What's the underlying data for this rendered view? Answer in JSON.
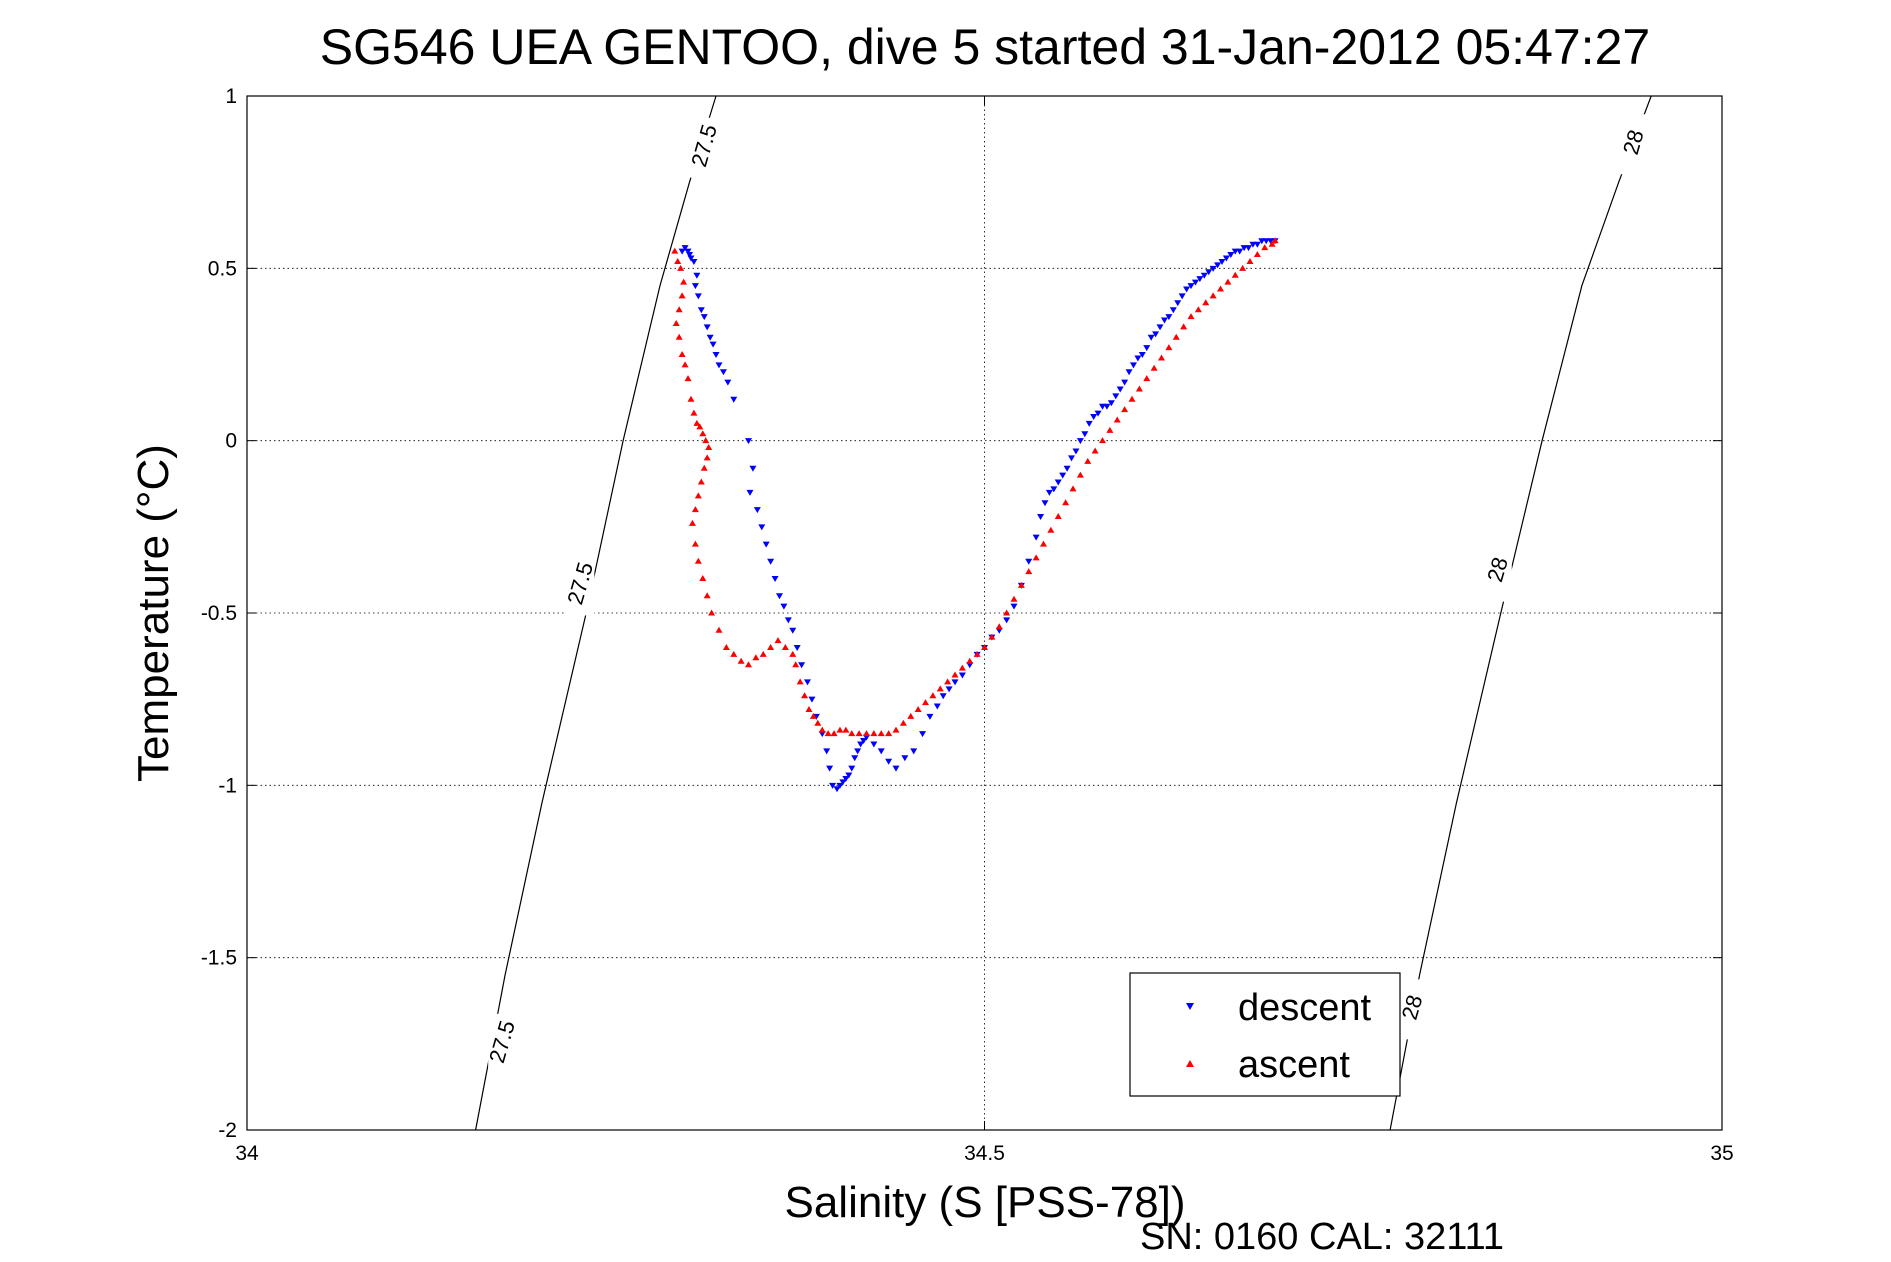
{
  "chart_data": {
    "type": "scatter",
    "title": "SG546 UEA GENTOO, dive 5 started 31-Jan-2012 05:47:27",
    "xlabel": "Salinity (S [PSS-78])",
    "ylabel": "Temperature (°C)",
    "xlim": [
      34,
      35
    ],
    "ylim": [
      -2,
      1
    ],
    "xticks": [
      34,
      34.5,
      35
    ],
    "xtick_labels": [
      "34",
      "34.5",
      "35"
    ],
    "yticks": [
      -2,
      -1.5,
      -1,
      -0.5,
      0,
      0.5,
      1
    ],
    "ytick_labels": [
      "-2",
      "-1.5",
      "-1",
      "-0.5",
      "0",
      "0.5",
      "1"
    ],
    "grid": true,
    "legend_position": "bottom-right",
    "footer": "SN: 0160  CAL: 32111",
    "contours": [
      {
        "level": "27.5",
        "x": [
          34.155,
          34.175,
          34.2,
          34.23,
          34.255,
          34.28,
          34.3,
          34.318
        ],
        "y": [
          -2.0,
          -1.55,
          -1.05,
          -0.5,
          0.0,
          0.45,
          0.75,
          1.0
        ],
        "labels": [
          {
            "x": 34.173,
            "y": -1.75
          },
          {
            "x": 34.226,
            "y": -0.42
          },
          {
            "x": 34.31,
            "y": 0.85
          }
        ]
      },
      {
        "level": "28",
        "x": [
          34.775,
          34.795,
          34.82,
          34.85,
          34.878,
          34.905,
          34.93,
          34.952
        ],
        "y": [
          -2.0,
          -1.55,
          -1.05,
          -0.5,
          0.0,
          0.45,
          0.75,
          1.0
        ],
        "labels": [
          {
            "x": 34.79,
            "y": -1.65
          },
          {
            "x": 34.848,
            "y": -0.38
          },
          {
            "x": 34.94,
            "y": 0.86
          }
        ]
      }
    ],
    "series": [
      {
        "name": "descent",
        "color": "#0000ff",
        "marker": "triangle-down",
        "x": [
          34.295,
          34.297,
          34.299,
          34.3,
          34.301,
          34.303,
          34.305,
          34.304,
          34.306,
          34.308,
          34.31,
          34.312,
          34.314,
          34.316,
          34.318,
          34.32,
          34.323,
          34.326,
          34.33,
          34.34,
          34.343,
          34.341,
          34.346,
          34.349,
          34.352,
          34.355,
          34.358,
          34.361,
          34.364,
          34.367,
          34.37,
          34.373,
          34.376,
          34.38,
          34.383,
          34.386,
          34.39,
          34.393,
          34.395,
          34.397,
          34.4,
          34.402,
          34.404,
          34.406,
          34.408,
          34.41,
          34.412,
          34.414,
          34.416,
          34.418,
          34.42,
          34.425,
          34.43,
          34.435,
          34.44,
          34.446,
          34.452,
          34.458,
          34.463,
          34.468,
          34.472,
          34.476,
          34.48,
          34.485,
          34.49,
          34.495,
          34.5,
          34.505,
          34.51,
          34.515,
          34.52,
          34.525,
          34.53,
          34.535,
          34.538,
          34.541,
          34.544,
          34.547,
          34.55,
          34.553,
          34.556,
          34.559,
          34.562,
          34.565,
          34.568,
          34.571,
          34.574,
          34.577,
          34.58,
          34.583,
          34.586,
          34.589,
          34.592,
          34.595,
          34.598,
          34.601,
          34.604,
          34.607,
          34.61,
          34.613,
          34.616,
          34.619,
          34.622,
          34.625,
          34.628,
          34.631,
          34.634,
          34.637,
          34.64,
          34.643,
          34.646,
          34.649,
          34.652,
          34.655,
          34.658,
          34.661,
          34.664,
          34.667,
          34.67,
          34.673,
          34.676,
          34.679,
          34.682,
          34.685,
          34.688,
          34.691,
          34.694,
          34.697
        ],
        "y": [
          0.55,
          0.56,
          0.55,
          0.54,
          0.53,
          0.52,
          0.48,
          0.45,
          0.42,
          0.38,
          0.36,
          0.33,
          0.3,
          0.28,
          0.25,
          0.22,
          0.2,
          0.17,
          0.12,
          0.0,
          -0.08,
          -0.15,
          -0.2,
          -0.25,
          -0.3,
          -0.35,
          -0.4,
          -0.45,
          -0.48,
          -0.52,
          -0.55,
          -0.6,
          -0.65,
          -0.7,
          -0.75,
          -0.8,
          -0.85,
          -0.9,
          -0.95,
          -1.0,
          -1.01,
          -1.0,
          -0.99,
          -0.98,
          -0.97,
          -0.95,
          -0.92,
          -0.9,
          -0.88,
          -0.87,
          -0.86,
          -0.88,
          -0.9,
          -0.93,
          -0.95,
          -0.92,
          -0.9,
          -0.85,
          -0.8,
          -0.77,
          -0.74,
          -0.72,
          -0.7,
          -0.68,
          -0.65,
          -0.62,
          -0.6,
          -0.57,
          -0.55,
          -0.52,
          -0.48,
          -0.42,
          -0.35,
          -0.28,
          -0.22,
          -0.18,
          -0.15,
          -0.14,
          -0.12,
          -0.1,
          -0.08,
          -0.05,
          -0.03,
          0.0,
          0.02,
          0.05,
          0.07,
          0.08,
          0.1,
          0.1,
          0.11,
          0.13,
          0.15,
          0.17,
          0.2,
          0.22,
          0.24,
          0.25,
          0.27,
          0.3,
          0.31,
          0.33,
          0.35,
          0.36,
          0.38,
          0.4,
          0.42,
          0.44,
          0.45,
          0.46,
          0.47,
          0.48,
          0.49,
          0.5,
          0.51,
          0.52,
          0.53,
          0.54,
          0.55,
          0.55,
          0.56,
          0.56,
          0.57,
          0.57,
          0.58,
          0.58,
          0.58,
          0.58
        ]
      },
      {
        "name": "ascent",
        "color": "#ff0000",
        "marker": "triangle-up",
        "x": [
          34.29,
          34.292,
          34.294,
          34.296,
          34.295,
          34.293,
          34.291,
          34.293,
          34.295,
          34.297,
          34.299,
          34.301,
          34.303,
          34.305,
          34.307,
          34.309,
          34.311,
          34.313,
          34.312,
          34.31,
          34.308,
          34.306,
          34.304,
          34.302,
          34.304,
          34.306,
          34.309,
          34.312,
          34.315,
          34.32,
          34.325,
          34.33,
          34.335,
          34.34,
          34.345,
          34.35,
          34.355,
          34.36,
          34.365,
          34.37,
          34.372,
          34.375,
          34.378,
          34.381,
          34.384,
          34.387,
          34.39,
          34.394,
          34.398,
          34.402,
          34.406,
          34.41,
          34.415,
          34.42,
          34.425,
          34.43,
          34.435,
          34.44,
          34.445,
          34.45,
          34.455,
          34.46,
          34.465,
          34.47,
          34.475,
          34.48,
          34.485,
          34.49,
          34.495,
          34.5,
          34.505,
          34.51,
          34.515,
          34.52,
          34.525,
          34.53,
          34.535,
          34.54,
          34.545,
          34.55,
          34.555,
          34.56,
          34.565,
          34.57,
          34.575,
          34.58,
          34.585,
          34.59,
          34.595,
          34.6,
          34.605,
          34.61,
          34.615,
          34.62,
          34.625,
          34.63,
          34.635,
          34.64,
          34.645,
          34.65,
          34.655,
          34.66,
          34.665,
          34.67,
          34.675,
          34.68,
          34.685,
          34.69,
          34.695,
          34.697
        ],
        "y": [
          0.55,
          0.52,
          0.5,
          0.46,
          0.42,
          0.38,
          0.34,
          0.3,
          0.25,
          0.22,
          0.18,
          0.12,
          0.08,
          0.05,
          0.04,
          0.02,
          0.0,
          -0.02,
          -0.05,
          -0.08,
          -0.12,
          -0.16,
          -0.2,
          -0.24,
          -0.3,
          -0.35,
          -0.4,
          -0.45,
          -0.5,
          -0.55,
          -0.6,
          -0.62,
          -0.64,
          -0.65,
          -0.63,
          -0.62,
          -0.6,
          -0.58,
          -0.6,
          -0.62,
          -0.65,
          -0.7,
          -0.74,
          -0.78,
          -0.8,
          -0.82,
          -0.84,
          -0.85,
          -0.85,
          -0.84,
          -0.84,
          -0.85,
          -0.85,
          -0.85,
          -0.85,
          -0.85,
          -0.85,
          -0.84,
          -0.82,
          -0.8,
          -0.78,
          -0.76,
          -0.74,
          -0.72,
          -0.7,
          -0.68,
          -0.66,
          -0.64,
          -0.62,
          -0.6,
          -0.57,
          -0.54,
          -0.5,
          -0.46,
          -0.42,
          -0.38,
          -0.34,
          -0.3,
          -0.26,
          -0.22,
          -0.18,
          -0.14,
          -0.1,
          -0.06,
          -0.03,
          0.0,
          0.03,
          0.06,
          0.09,
          0.12,
          0.15,
          0.18,
          0.21,
          0.24,
          0.27,
          0.3,
          0.33,
          0.36,
          0.38,
          0.4,
          0.42,
          0.44,
          0.46,
          0.48,
          0.5,
          0.52,
          0.54,
          0.56,
          0.57,
          0.58
        ]
      }
    ]
  }
}
